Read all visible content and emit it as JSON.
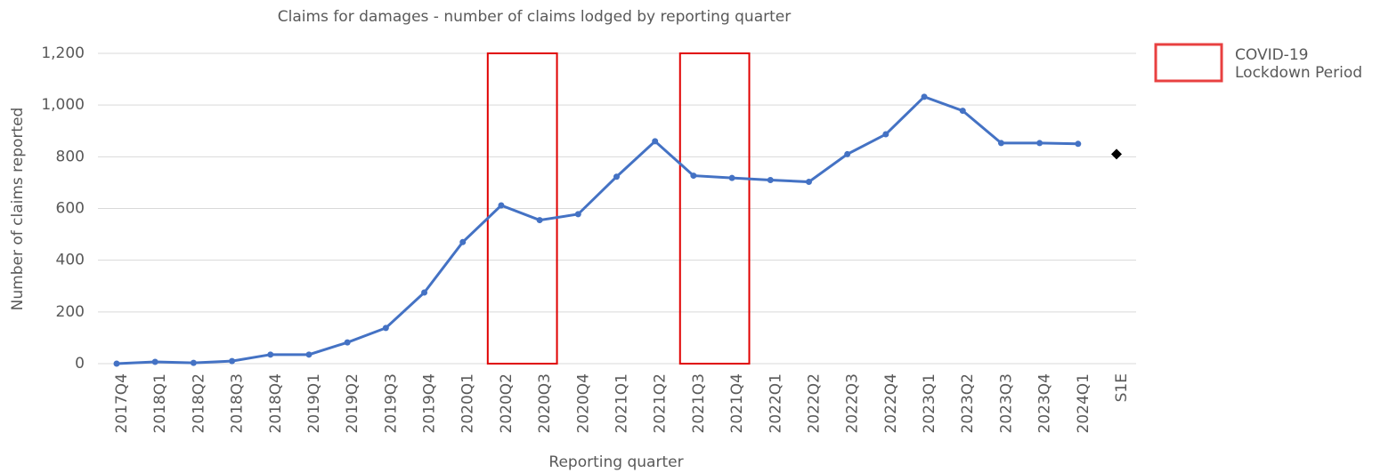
{
  "chart_data": {
    "type": "line",
    "title": "Claims for damages - number of claims lodged by reporting quarter",
    "x_label": "Reporting quarter",
    "y_label": "Number of claims reported",
    "categories": [
      "2017Q4",
      "2018Q1",
      "2018Q2",
      "2018Q3",
      "2018Q4",
      "2019Q1",
      "2019Q2",
      "2019Q3",
      "2019Q4",
      "2020Q1",
      "2020Q2",
      "2020Q3",
      "2020Q4",
      "2021Q1",
      "2021Q2",
      "2021Q3",
      "2021Q4",
      "2022Q1",
      "2022Q2",
      "2022Q3",
      "2022Q4",
      "2023Q1",
      "2023Q2",
      "2023Q3",
      "2023Q4",
      "2024Q1",
      "S1E"
    ],
    "series": [
      {
        "color": "#4472c4",
        "marker": "circle",
        "values": [
          0,
          7,
          3,
          10,
          35,
          35,
          82,
          138,
          275,
          470,
          612,
          555,
          578,
          723,
          860,
          727,
          718,
          710,
          703,
          810,
          887,
          1032,
          978,
          853,
          853,
          850,
          null
        ]
      },
      {
        "color": "#000000",
        "marker": "diamond",
        "values": [
          null,
          null,
          null,
          null,
          null,
          null,
          null,
          null,
          null,
          null,
          null,
          null,
          null,
          null,
          null,
          null,
          null,
          null,
          null,
          null,
          null,
          null,
          null,
          null,
          null,
          null,
          810
        ]
      }
    ],
    "ylim": [
      0,
      1200
    ],
    "yticks": [
      0,
      200,
      400,
      600,
      800,
      {
        "value": 1000,
        "label": "1,000"
      },
      {
        "value": 1200,
        "label": "1,200"
      }
    ],
    "grid": true,
    "shaded_periods": {
      "label": [
        "COVID-19",
        "Lockdown Period"
      ],
      "color": "#e00000",
      "ranges": [
        {
          "start": "2020Q2",
          "end": "2020Q3"
        },
        {
          "start": "2021Q3",
          "end": "2021Q4"
        }
      ]
    },
    "legend_position": "upper right"
  }
}
